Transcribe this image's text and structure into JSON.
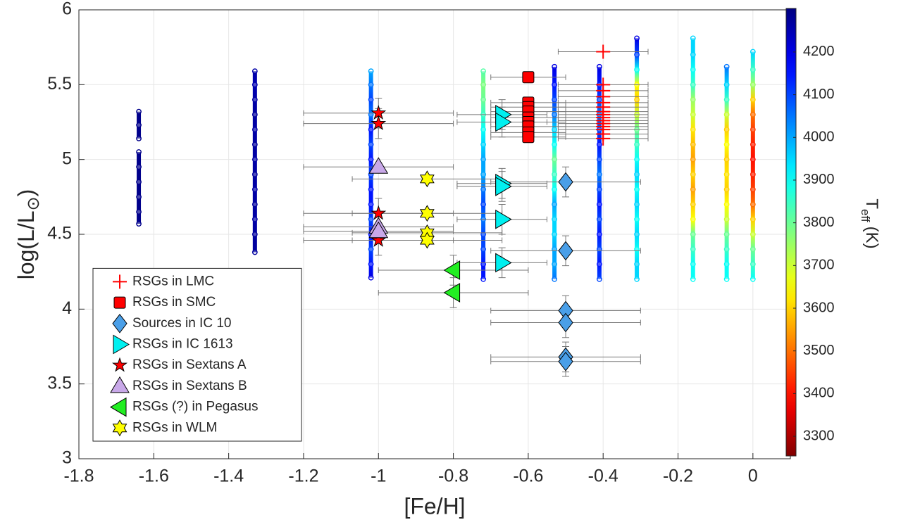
{
  "chart_data": {
    "type": "scatter",
    "x_label": "[Fe/H]",
    "y_label": {
      "text": "log(L/L",
      "subscript": "⊙",
      "close": ")"
    },
    "xlim": [
      -1.8,
      0.1
    ],
    "xticks": [
      -1.8,
      -1.6,
      -1.4,
      -1.2,
      -1,
      -0.8,
      -0.6,
      -0.4,
      -0.2,
      0
    ],
    "ylim": [
      3,
      6
    ],
    "yticks": [
      3,
      3.5,
      4,
      4.5,
      5,
      5.5,
      6
    ],
    "grid": true,
    "legend": "lower left",
    "colormap": "jet",
    "colormap_reversed": true,
    "clim": [
      3254,
      4302
    ],
    "cticks": [
      3300,
      3400,
      3500,
      3600,
      3700,
      3800,
      3900,
      4000,
      4100,
      4200
    ],
    "colorbar_label": {
      "symbol": "T",
      "subscript": "eff",
      "unit": "(K)"
    },
    "columns": [
      {
        "x": -1.64,
        "y": [
          4.57,
          4.65,
          4.75,
          4.85,
          4.95,
          5.05,
          null,
          5.14,
          5.23,
          5.32
        ],
        "teff": [
          4290,
          4290,
          4290,
          4290,
          4290,
          4290,
          null,
          4290,
          4290,
          4290
        ]
      },
      {
        "x": -1.33,
        "y": [
          4.38,
          4.5,
          4.6,
          4.7,
          4.8,
          4.9,
          5.0,
          5.1,
          5.2,
          5.3,
          5.4,
          5.5,
          5.59
        ],
        "teff": [
          4270,
          4270,
          4260,
          4270,
          4260,
          4270,
          4260,
          4270,
          4260,
          4270,
          4260,
          4250,
          4260
        ]
      },
      {
        "x": -1.02,
        "y": [
          4.21,
          4.3,
          4.4,
          4.5,
          4.6,
          4.7,
          4.8,
          4.9,
          5.0,
          5.1,
          5.2,
          5.3,
          5.4,
          5.5,
          5.59
        ],
        "teff": [
          4200,
          4150,
          4100,
          4150,
          4100,
          4150,
          4150,
          4100,
          4150,
          4100,
          4150,
          4050,
          4100,
          4050,
          4000
        ]
      },
      {
        "x": -0.72,
        "y": [
          4.2,
          4.3,
          4.4,
          4.5,
          4.6,
          4.7,
          4.8,
          4.9,
          5.0,
          5.1,
          5.2,
          5.3,
          5.4,
          5.5,
          5.59
        ],
        "teff": [
          4150,
          4150,
          4100,
          4100,
          4050,
          4100,
          4050,
          4000,
          4000,
          3950,
          3900,
          3850,
          3800,
          3780,
          3820
        ]
      },
      {
        "x": -0.53,
        "y": [
          4.2,
          4.3,
          4.4,
          4.5,
          4.6,
          4.7,
          4.8,
          4.9,
          5.0,
          5.1,
          5.2,
          5.3,
          5.4,
          5.5,
          5.62
        ],
        "teff": [
          4050,
          4000,
          4000,
          3950,
          3950,
          4000,
          3900,
          3850,
          3800,
          3900,
          3950,
          4050,
          4100,
          4150,
          4200
        ]
      },
      {
        "x": -0.41,
        "y": [
          4.2,
          4.3,
          4.4,
          4.5,
          4.6,
          4.7,
          4.8,
          4.9,
          5.0,
          5.1,
          5.2,
          5.3,
          5.4,
          5.5,
          5.62
        ],
        "teff": [
          4100,
          4150,
          4100,
          4150,
          4100,
          4150,
          4100,
          4050,
          4100,
          4150,
          4100,
          4050,
          4100,
          4150,
          4200
        ]
      },
      {
        "x": -0.31,
        "y": [
          4.2,
          4.3,
          4.4,
          4.5,
          4.6,
          4.7,
          4.8,
          4.9,
          5.0,
          5.1,
          5.2,
          5.3,
          5.4,
          5.5,
          5.6,
          5.7,
          5.81
        ],
        "teff": [
          3950,
          3950,
          3900,
          3950,
          3900,
          3950,
          3900,
          3950,
          3900,
          3850,
          3800,
          3700,
          3600,
          3650,
          3900,
          4100,
          4200
        ]
      },
      {
        "x": -0.16,
        "y": [
          4.2,
          4.3,
          4.4,
          4.5,
          4.6,
          4.7,
          4.8,
          4.9,
          5.0,
          5.1,
          5.2,
          5.3,
          5.4,
          5.5,
          5.6,
          5.7,
          5.81
        ],
        "teff": [
          3900,
          3900,
          3850,
          3800,
          3650,
          3600,
          3550,
          3600,
          3550,
          3580,
          3620,
          3700,
          3750,
          3850,
          3900,
          3950,
          3950
        ]
      },
      {
        "x": -0.07,
        "y": [
          4.2,
          4.3,
          4.4,
          4.5,
          4.6,
          4.7,
          4.8,
          4.9,
          5.0,
          5.1,
          5.2,
          5.3,
          5.4,
          5.5,
          5.62
        ],
        "teff": [
          3900,
          3900,
          3850,
          3800,
          3700,
          3650,
          3600,
          3620,
          3600,
          3650,
          3600,
          3700,
          3850,
          3950,
          4050
        ]
      },
      {
        "x": 0,
        "y": [
          4.2,
          4.3,
          4.4,
          4.5,
          4.6,
          4.7,
          4.8,
          4.9,
          5.0,
          5.1,
          5.2,
          5.3,
          5.4,
          5.5,
          5.6,
          5.72
        ],
        "teff": [
          3900,
          3850,
          3800,
          3700,
          3600,
          3500,
          3450,
          3420,
          3400,
          3420,
          3450,
          3500,
          3600,
          3750,
          3850,
          3950
        ]
      }
    ],
    "series": [
      {
        "name": "RSGs in LMC",
        "marker": "plus",
        "color": "#ff0000",
        "x": -0.4,
        "xerr": 0.12,
        "values": [
          5.72,
          5.5,
          5.46,
          5.42,
          5.38,
          5.35,
          5.32,
          5.3,
          5.28,
          5.26,
          5.24,
          5.22,
          5.2,
          5.17,
          5.14
        ]
      },
      {
        "name": "RSGs in SMC",
        "marker": "square",
        "color": "#ff0000",
        "x": -0.6,
        "xerr": 0.1,
        "values": [
          5.55,
          5.38,
          5.35,
          5.32,
          5.28,
          5.25,
          5.22,
          5.18,
          5.15
        ]
      },
      {
        "name": "Sources in IC 10",
        "marker": "diamond",
        "color": "#4a9fe8",
        "x": -0.5,
        "xerr": 0.2,
        "yerr": 0.1,
        "values": [
          4.85,
          4.39,
          3.99,
          3.91,
          3.68,
          3.65
        ]
      },
      {
        "name": "RSGs in IC 1613",
        "marker": "triangle-right",
        "color": "#00f0f0",
        "x": -0.67,
        "xerr": 0.12,
        "yerr": 0.1,
        "values": [
          5.3,
          5.25,
          4.84,
          4.82,
          4.6,
          4.31
        ]
      },
      {
        "name": "RSGs in Sextans A",
        "marker": "star",
        "color": "#ff0000",
        "x": -1.0,
        "xerr": 0.2,
        "yerr": 0.1,
        "values": [
          5.31,
          5.24,
          4.64,
          4.46
        ]
      },
      {
        "name": "RSGs in Sextans B",
        "marker": "triangle-up",
        "color": "#c8a8e8",
        "x": -1.0,
        "xerr": 0.2,
        "values": [
          4.95,
          4.55,
          4.52
        ]
      },
      {
        "name": "RSGs (?) in Pegasus",
        "marker": "triangle-left",
        "color": "#22ee22",
        "x": -0.8,
        "xerr": 0.2,
        "yerr": 0.1,
        "values": [
          4.26,
          4.11
        ]
      },
      {
        "name": "RSGs in WLM",
        "marker": "hexagram",
        "color": "#ffff00",
        "x": -0.87,
        "xerr": 0.2,
        "values": [
          4.87,
          4.64,
          4.51,
          4.46
        ]
      }
    ]
  }
}
